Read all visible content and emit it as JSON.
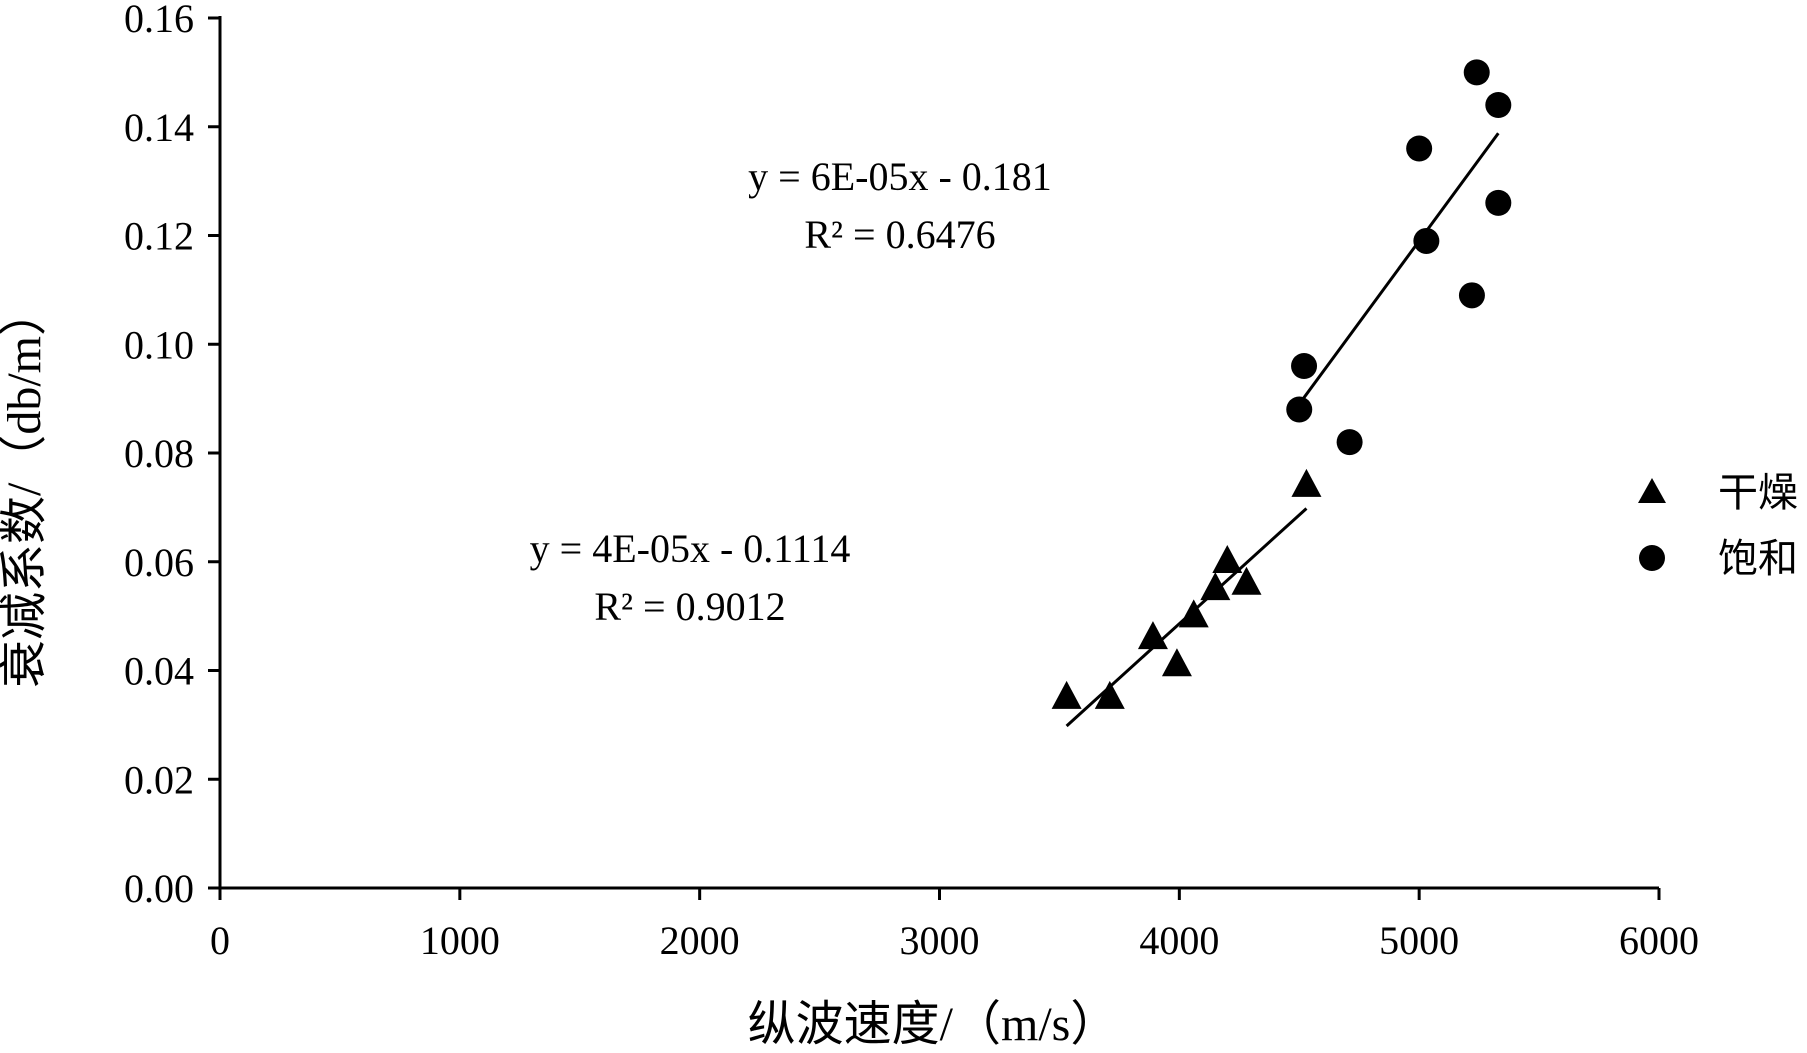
{
  "chart_data": {
    "type": "scatter",
    "xlabel": "纵波速度/（m/s）",
    "ylabel": "衰减系数/（db/m）",
    "xlim": [
      0,
      6000
    ],
    "ylim": [
      0,
      0.16
    ],
    "x_ticks": [
      "0",
      "1000",
      "2000",
      "3000",
      "4000",
      "5000",
      "6000"
    ],
    "y_ticks": [
      "0.00",
      "0.02",
      "0.04",
      "0.06",
      "0.08",
      "0.10",
      "0.12",
      "0.14",
      "0.16"
    ],
    "grid": false,
    "legend_position": "right",
    "series": [
      {
        "name": "干燥",
        "marker": "triangle",
        "color": "#000000",
        "x": [
          3530,
          3710,
          3890,
          3990,
          4060,
          4150,
          4200,
          4280,
          4530
        ],
        "y": [
          0.035,
          0.035,
          0.046,
          0.041,
          0.05,
          0.055,
          0.06,
          0.056,
          0.074
        ],
        "trendline": {
          "slope": 4e-05,
          "intercept": -0.1114,
          "x_range": [
            3530,
            4530
          ],
          "equation": "y = 4E-05x - 0.1114",
          "r2_label": "R² = 0.9012"
        }
      },
      {
        "name": "饱和",
        "marker": "circle",
        "color": "#000000",
        "x": [
          4500,
          4520,
          4710,
          5000,
          5030,
          5220,
          5240,
          5330,
          5330
        ],
        "y": [
          0.088,
          0.096,
          0.082,
          0.136,
          0.119,
          0.109,
          0.15,
          0.144,
          0.126
        ],
        "trendline": {
          "slope": 6e-05,
          "intercept": -0.181,
          "x_range": [
            4500,
            5330
          ],
          "equation": "y = 6E-05x - 0.181",
          "r2_label": "R² = 0.6476"
        }
      }
    ]
  }
}
